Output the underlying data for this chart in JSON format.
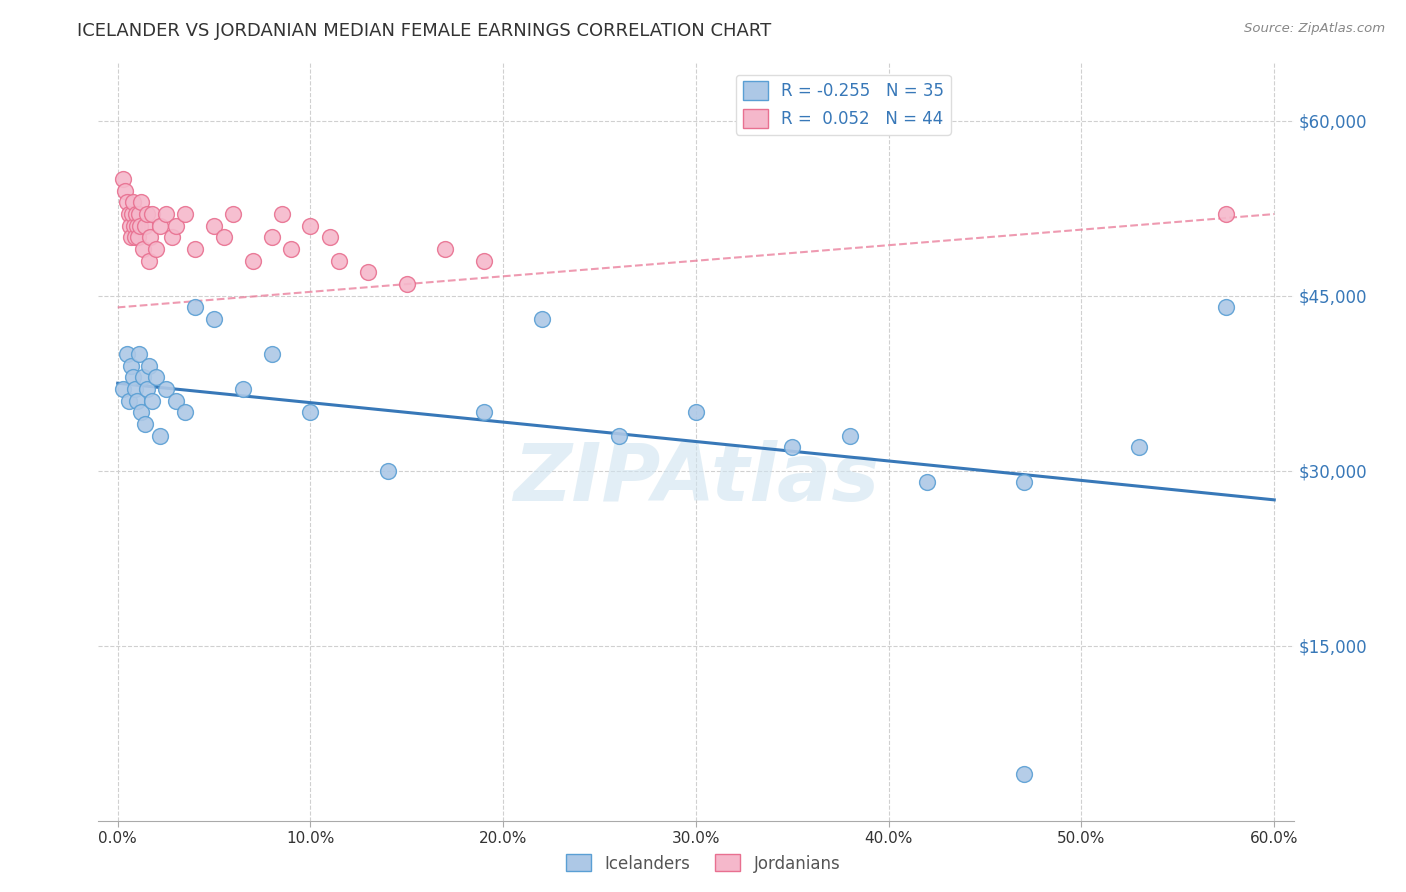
{
  "title": "ICELANDER VS JORDANIAN MEDIAN FEMALE EARNINGS CORRELATION CHART",
  "source": "Source: ZipAtlas.com",
  "xlabel_ticks": [
    "0.0%",
    "10.0%",
    "20.0%",
    "30.0%",
    "40.0%",
    "50.0%",
    "60.0%"
  ],
  "xlabel_tick_vals": [
    0.0,
    10.0,
    20.0,
    30.0,
    40.0,
    50.0,
    60.0
  ],
  "ylabel_ticks": [
    "$15,000",
    "$30,000",
    "$45,000",
    "$60,000"
  ],
  "ylabel_tick_vals": [
    15000,
    30000,
    45000,
    60000
  ],
  "xlim": [
    -1.0,
    61.0
  ],
  "ylim": [
    0,
    65000
  ],
  "icelanders_R": -0.255,
  "icelanders_N": 35,
  "jordanians_R": 0.052,
  "jordanians_N": 44,
  "icelander_color": "#adc8e6",
  "jordanian_color": "#f5b8cb",
  "icelander_edge_color": "#5a9fd4",
  "jordanian_edge_color": "#e87090",
  "icelander_line_color": "#3878b8",
  "jordanian_line_color": "#e87090",
  "background_color": "#ffffff",
  "watermark": "ZIPAtlas",
  "watermark_color": "#d0e4f0",
  "grid_color": "#d0d0d0",
  "title_color": "#333333",
  "source_color": "#888888",
  "ylabel_color": "#3878b8",
  "xlabel_color": "#333333",
  "legend_r_color": "#3878b8",
  "icelanders_x": [
    0.3,
    0.5,
    0.6,
    0.7,
    0.8,
    0.9,
    1.0,
    1.1,
    1.2,
    1.3,
    1.4,
    1.5,
    1.6,
    1.8,
    2.0,
    2.2,
    2.5,
    3.0,
    3.5,
    4.0,
    5.0,
    6.5,
    8.0,
    10.0,
    14.0,
    19.0,
    22.0,
    26.0,
    30.0,
    35.0,
    38.0,
    42.0,
    47.0,
    53.0,
    57.5
  ],
  "icelanders_y": [
    37000,
    40000,
    36000,
    39000,
    38000,
    37000,
    36000,
    40000,
    35000,
    38000,
    34000,
    37000,
    39000,
    36000,
    38000,
    33000,
    37000,
    36000,
    35000,
    44000,
    43000,
    37000,
    40000,
    35000,
    30000,
    35000,
    43000,
    33000,
    35000,
    32000,
    33000,
    29000,
    29000,
    32000,
    44000
  ],
  "jordanians_x": [
    0.3,
    0.4,
    0.5,
    0.6,
    0.65,
    0.7,
    0.75,
    0.8,
    0.85,
    0.9,
    0.95,
    1.0,
    1.05,
    1.1,
    1.15,
    1.2,
    1.3,
    1.4,
    1.5,
    1.6,
    1.7,
    1.8,
    2.0,
    2.2,
    2.5,
    2.8,
    3.0,
    3.5,
    4.0,
    5.0,
    5.5,
    6.0,
    7.0,
    8.0,
    8.5,
    9.0,
    10.0,
    11.0,
    11.5,
    13.0,
    15.0,
    17.0,
    19.0,
    57.5
  ],
  "jordanians_y": [
    55000,
    54000,
    53000,
    52000,
    51000,
    50000,
    52000,
    53000,
    51000,
    50000,
    52000,
    51000,
    50000,
    52000,
    51000,
    53000,
    49000,
    51000,
    52000,
    48000,
    50000,
    52000,
    49000,
    51000,
    52000,
    50000,
    51000,
    52000,
    49000,
    51000,
    50000,
    52000,
    48000,
    50000,
    52000,
    49000,
    51000,
    50000,
    48000,
    47000,
    46000,
    49000,
    48000,
    52000
  ],
  "icelander_trendline_x": [
    0,
    60
  ],
  "icelander_trendline_y": [
    37500,
    27500
  ],
  "jordanian_trendline_x": [
    0,
    60
  ],
  "jordanian_trendline_y": [
    44000,
    52000
  ]
}
